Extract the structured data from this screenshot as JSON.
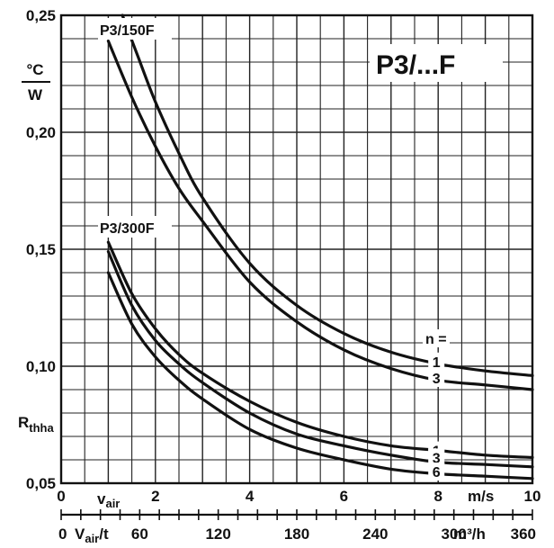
{
  "chart_data": {
    "type": "line",
    "title": "P3/...F",
    "ylabel": "R_thha",
    "yunit": {
      "num": "°C",
      "den": "W"
    },
    "xlim": [
      0,
      10
    ],
    "ylim": [
      0.05,
      0.25
    ],
    "grid": true,
    "y_ticks": [
      "0,05",
      "0,10",
      "0,15",
      "0,20",
      "0,25"
    ],
    "x_ticks": [
      "0",
      "2",
      "4",
      "6",
      "8",
      "10"
    ],
    "x_axis_label": "v",
    "x_axis_label_sub": "air",
    "x_unit": "m/s",
    "x2_ticks": [
      "0",
      "60",
      "120",
      "180",
      "240",
      "300",
      "360"
    ],
    "x2_axis_label": "V",
    "x2_axis_label_sub": "air",
    "x2_axis_label_suffix": "/t",
    "x2_unit": "m³/h",
    "legend_header": "n =",
    "group_labels": [
      "P3/150F",
      "P3/300F"
    ],
    "series": [
      {
        "group": "P3/150F",
        "name": "1",
        "x": [
          1.3,
          1.6,
          2,
          2.5,
          3,
          4,
          5,
          6,
          7,
          8,
          9,
          10
        ],
        "values": [
          0.25,
          0.234,
          0.213,
          0.191,
          0.172,
          0.144,
          0.126,
          0.114,
          0.106,
          0.101,
          0.098,
          0.096
        ]
      },
      {
        "group": "P3/150F",
        "name": "3",
        "x": [
          1,
          1.5,
          2,
          2.5,
          3,
          4,
          5,
          6,
          7,
          8,
          9,
          10
        ],
        "values": [
          0.239,
          0.215,
          0.194,
          0.176,
          0.162,
          0.136,
          0.119,
          0.107,
          0.099,
          0.094,
          0.092,
          0.09
        ]
      },
      {
        "group": "P3/300F",
        "name": "1",
        "x": [
          1,
          1.5,
          2,
          2.5,
          3,
          4,
          5,
          6,
          7,
          8,
          9,
          10
        ],
        "values": [
          0.153,
          0.131,
          0.116,
          0.105,
          0.097,
          0.085,
          0.076,
          0.07,
          0.066,
          0.064,
          0.062,
          0.061
        ]
      },
      {
        "group": "P3/300F",
        "name": "3",
        "x": [
          1,
          1.5,
          2,
          2.5,
          3,
          4,
          5,
          6,
          7,
          8,
          9,
          10
        ],
        "values": [
          0.149,
          0.126,
          0.111,
          0.101,
          0.093,
          0.08,
          0.071,
          0.066,
          0.062,
          0.059,
          0.058,
          0.057
        ]
      },
      {
        "group": "P3/300F",
        "name": "6",
        "x": [
          1,
          1.5,
          2,
          2.5,
          3,
          4,
          5,
          6,
          7,
          8,
          9,
          10
        ],
        "values": [
          0.14,
          0.118,
          0.104,
          0.094,
          0.086,
          0.073,
          0.065,
          0.06,
          0.056,
          0.054,
          0.053,
          0.052
        ]
      }
    ]
  }
}
